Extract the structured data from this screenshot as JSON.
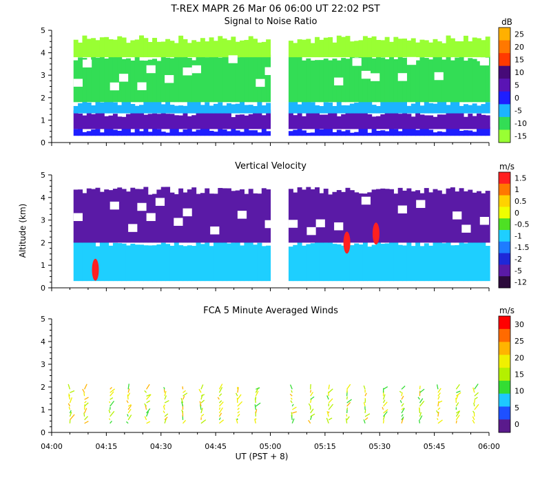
{
  "header": {
    "title": "T-REX   MAPR 26 Mar 06   06:00 UT   22:02   PST"
  },
  "shared_axes": {
    "xlabel": "UT  (PST + 8)",
    "ylabel": "Altitude (km)",
    "x_ticks": [
      "04:00",
      "04:15",
      "04:30",
      "04:45",
      "05:00",
      "05:15",
      "05:30",
      "05:45",
      "06:00"
    ],
    "y_ticks": [
      "0",
      "1",
      "2",
      "3",
      "4",
      "5"
    ]
  },
  "chart_data": [
    {
      "type": "heatmap",
      "title": "Signal to Noise Ratio",
      "colorbar": {
        "unit": "dB",
        "labels": [
          "25",
          "20",
          "15",
          "10",
          "5",
          "0",
          "-5",
          "-10",
          "-15"
        ],
        "colors": [
          "#ffb000",
          "#ff7800",
          "#ff3a00",
          "#460a78",
          "#5a14b4",
          "#1e1eff",
          "#1cb4ff",
          "#33dd55",
          "#99ff33"
        ]
      },
      "x_range": [
        "04:00",
        "06:00"
      ],
      "ylim": [
        0,
        5
      ],
      "data_gap": [
        "05:00",
        "05:05"
      ],
      "layers": [
        {
          "alt_km": [
            0.3,
            0.6
          ],
          "dB": -2
        },
        {
          "alt_km": [
            0.6,
            1.3
          ],
          "dB": 3
        },
        {
          "alt_km": [
            1.3,
            1.8
          ],
          "dB": -5
        },
        {
          "alt_km": [
            1.8,
            3.8
          ],
          "dB": -12
        },
        {
          "alt_km": [
            3.8,
            4.6
          ],
          "dB": -15
        }
      ]
    },
    {
      "type": "heatmap",
      "title": "Vertical Velocity",
      "colorbar": {
        "unit": "m/s",
        "labels": [
          "1.5",
          "1",
          "0.5",
          "0",
          "-0.5",
          "-1",
          "-1.5",
          "-2",
          "-5",
          "-12"
        ],
        "colors": [
          "#ff2020",
          "#ff7800",
          "#ffd200",
          "#f0ff00",
          "#4ee024",
          "#1ecfff",
          "#1e7cff",
          "#1e28d8",
          "#5a1aa6",
          "#2c0a3c"
        ]
      },
      "x_range": [
        "04:00",
        "06:00"
      ],
      "ylim": [
        0,
        5
      ],
      "data_gap": [
        "05:00",
        "05:05"
      ],
      "layers": [
        {
          "alt_km": [
            0.3,
            2.0
          ],
          "m_s": -1
        },
        {
          "alt_km": [
            2.0,
            4.3
          ],
          "m_s": -5
        }
      ],
      "peak_updrafts": [
        {
          "time": "04:12",
          "alt_km": 0.8,
          "m_s": 1.5
        },
        {
          "time": "05:21",
          "alt_km": 2.0,
          "m_s": 1.5
        },
        {
          "time": "05:29",
          "alt_km": 2.4,
          "m_s": 1.5
        }
      ]
    },
    {
      "type": "scatter",
      "title": "FCA 5 Minute Averaged Winds",
      "colorbar": {
        "unit": "m/s",
        "labels": [
          "30",
          "25",
          "20",
          "15",
          "10",
          "5",
          "0"
        ],
        "colors": [
          "#ff0000",
          "#ff6a00",
          "#ffb400",
          "#f0f000",
          "#b4f000",
          "#33dd33",
          "#1ec8ff",
          "#1e50ff",
          "#5a1a8c"
        ]
      },
      "x_range": [
        "04:00",
        "06:00"
      ],
      "ylim": [
        0,
        5
      ],
      "profile_times": [
        "04:05",
        "04:09",
        "04:16",
        "04:21",
        "04:26",
        "04:31",
        "04:36",
        "04:41",
        "04:46",
        "04:51",
        "04:56",
        "05:06",
        "05:11",
        "05:16",
        "05:21",
        "05:26",
        "05:31",
        "05:36",
        "05:41",
        "05:46",
        "05:51",
        "05:56"
      ],
      "profile_alt_km": [
        0.4,
        2.0
      ],
      "speed_range_m_s": [
        5,
        20
      ]
    }
  ]
}
